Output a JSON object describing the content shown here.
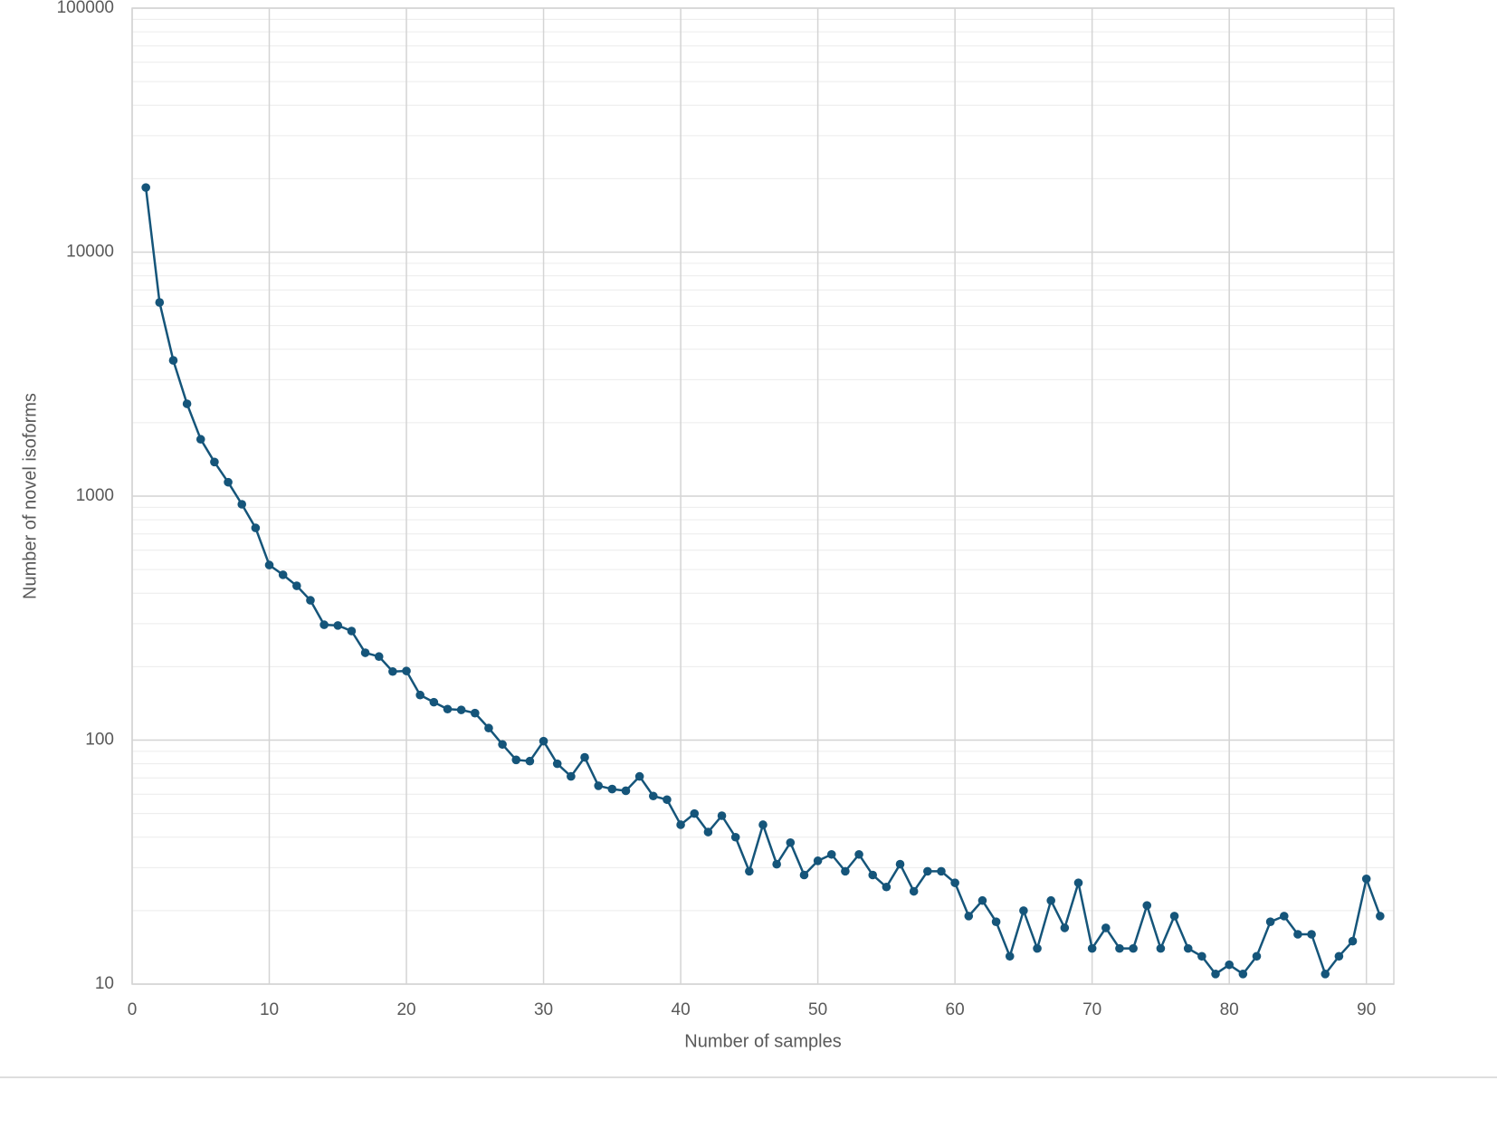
{
  "chart_data": {
    "type": "line",
    "x_label": "Number of samples",
    "y_label": "Number of novel isoforms",
    "log_y": true,
    "grid": true,
    "xlim": [
      0,
      92
    ],
    "xticks": [
      0,
      10,
      20,
      30,
      40,
      50,
      60,
      70,
      80,
      90
    ],
    "ylim": [
      10,
      100000
    ],
    "yticks": [
      10,
      100,
      1000,
      10000,
      100000
    ],
    "x": [
      1,
      2,
      3,
      4,
      5,
      6,
      7,
      8,
      9,
      10,
      11,
      12,
      13,
      14,
      15,
      16,
      17,
      18,
      19,
      20,
      21,
      22,
      23,
      24,
      25,
      26,
      27,
      28,
      29,
      30,
      31,
      32,
      33,
      34,
      35,
      36,
      37,
      38,
      39,
      40,
      41,
      42,
      43,
      44,
      45,
      46,
      47,
      48,
      49,
      50,
      51,
      52,
      53,
      54,
      55,
      56,
      57,
      58,
      59,
      60,
      61,
      62,
      63,
      64,
      65,
      66,
      67,
      68,
      69,
      70,
      71,
      72,
      73,
      74,
      75,
      76,
      77,
      78,
      79,
      80,
      81,
      82,
      83,
      84,
      85,
      86,
      87,
      88,
      89,
      90,
      91
    ],
    "series": [
      {
        "color": "#15557a",
        "values": [
          18400,
          6220,
          3600,
          2390,
          1710,
          1380,
          1140,
          926,
          741,
          522,
          476,
          429,
          374,
          297,
          295,
          280,
          228,
          220,
          191,
          192,
          153,
          143,
          134,
          133,
          129,
          112,
          96,
          83,
          82,
          99,
          80,
          71,
          85,
          65,
          63,
          62,
          71,
          59,
          57,
          45,
          50,
          42,
          49,
          40,
          29,
          45,
          31,
          38,
          28,
          32,
          34,
          29,
          34,
          28,
          25,
          31,
          24,
          29,
          29,
          26,
          19,
          22,
          18,
          13,
          20,
          14,
          22,
          17,
          26,
          14,
          17,
          14,
          14,
          21,
          14,
          19,
          14,
          13,
          11,
          12,
          11,
          13,
          18,
          19,
          16,
          16,
          11,
          13,
          15,
          27,
          19
        ]
      }
    ]
  }
}
